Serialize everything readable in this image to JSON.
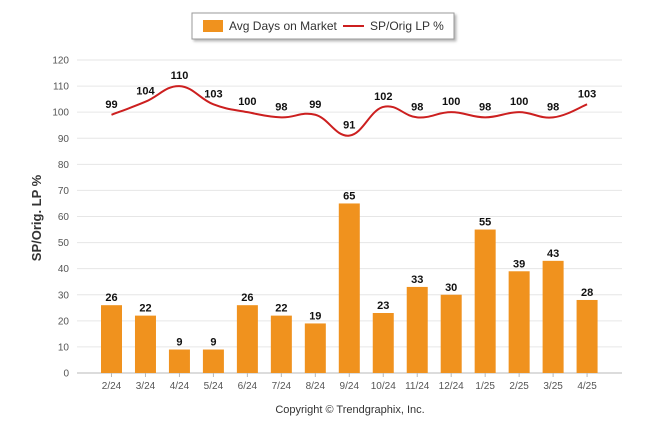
{
  "chart_data": {
    "type": "bar",
    "categories": [
      "2/24",
      "3/24",
      "4/24",
      "5/24",
      "6/24",
      "7/24",
      "8/24",
      "9/24",
      "10/24",
      "11/24",
      "12/24",
      "1/25",
      "2/25",
      "3/25",
      "4/25"
    ],
    "series": [
      {
        "name": "Avg Days on Market",
        "type": "bar",
        "color": "#f0921e",
        "values": [
          26,
          22,
          9,
          9,
          26,
          22,
          19,
          65,
          23,
          33,
          30,
          55,
          39,
          43,
          28
        ]
      },
      {
        "name": "SP/Orig LP %",
        "type": "line",
        "color": "#cc1f1f",
        "values": [
          99,
          104,
          110,
          103,
          100,
          98,
          99,
          91,
          102,
          98,
          100,
          98,
          100,
          98,
          103
        ]
      }
    ],
    "ylabel": "SP/Orig. LP %",
    "ylim": [
      0,
      120
    ],
    "yticks": [
      0,
      10,
      20,
      30,
      40,
      50,
      60,
      70,
      80,
      90,
      100,
      110,
      120
    ],
    "grid": true,
    "legend_position": "top-center",
    "credit": "Copyright © Trendgraphix, Inc."
  }
}
